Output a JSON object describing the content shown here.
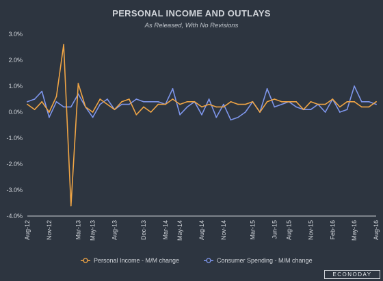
{
  "chart_data": {
    "type": "line",
    "title": "PERSONAL INCOME AND OUTLAYS",
    "subtitle": "As Released, With No Revisions",
    "y_tick_labels": [
      "3.0%",
      "2.0%",
      "1.0%",
      "0.0%",
      "-1.0%",
      "-2.0%",
      "-3.0%",
      "-4.0%"
    ],
    "ylim": [
      -4.0,
      3.0
    ],
    "grid": false,
    "legend_position": "bottom",
    "x": [
      "Aug-12",
      "Sep-12",
      "Oct-12",
      "Nov-12",
      "Dec-12",
      "Jan-13",
      "Feb-13",
      "Mar-13",
      "Apr-13",
      "May-13",
      "Jun-13",
      "Jul-13",
      "Aug-13",
      "Sep-13",
      "Oct-13",
      "Nov-13",
      "Dec-13",
      "Jan-14",
      "Feb-14",
      "Mar-14",
      "Apr-14",
      "May-14",
      "Jun-14",
      "Jul-14",
      "Aug-14",
      "Sep-14",
      "Oct-14",
      "Nov-14",
      "Dec-14",
      "Jan-15",
      "Feb-15",
      "Mar-15",
      "Apr-15",
      "May-15",
      "Jun-15",
      "Jul-15",
      "Aug-15",
      "Sep-15",
      "Oct-15",
      "Nov-15",
      "Dec-15",
      "Jan-16",
      "Feb-16",
      "Mar-16",
      "Apr-16",
      "May-16",
      "Jun-16",
      "Jul-16",
      "Aug-16"
    ],
    "x_tick_labels": [
      "Aug-12",
      "Nov-12",
      "Mar-13",
      "May-13",
      "Aug-13",
      "Dec-13",
      "Mar-14",
      "May-14",
      "Aug-14",
      "Nov-14",
      "Mar-15",
      "Jun-15",
      "Aug-15",
      "Nov-15",
      "Feb-16",
      "May-16",
      "Aug-16"
    ],
    "series": [
      {
        "name": "Personal Income - M/M change",
        "color": "#f0a545",
        "values": [
          0.3,
          0.1,
          0.4,
          0.0,
          0.6,
          2.6,
          -3.6,
          1.1,
          0.2,
          0.0,
          0.5,
          0.3,
          0.1,
          0.4,
          0.5,
          -0.1,
          0.2,
          0.0,
          0.3,
          0.3,
          0.5,
          0.3,
          0.4,
          0.4,
          0.2,
          0.3,
          0.2,
          0.2,
          0.4,
          0.3,
          0.3,
          0.4,
          0.0,
          0.4,
          0.5,
          0.4,
          0.4,
          0.4,
          0.1,
          0.4,
          0.3,
          0.3,
          0.5,
          0.2,
          0.4,
          0.4,
          0.2,
          0.2,
          0.4
        ]
      },
      {
        "name": "Consumer Spending - M/M change",
        "color": "#7e96ec",
        "values": [
          0.4,
          0.5,
          0.8,
          -0.2,
          0.4,
          0.2,
          0.2,
          0.7,
          0.2,
          -0.2,
          0.3,
          0.5,
          0.1,
          0.3,
          0.3,
          0.5,
          0.4,
          0.4,
          0.4,
          0.3,
          0.9,
          -0.1,
          0.2,
          0.4,
          -0.1,
          0.5,
          -0.2,
          0.3,
          -0.3,
          -0.2,
          0.0,
          0.4,
          0.0,
          0.9,
          0.2,
          0.3,
          0.4,
          0.2,
          0.1,
          0.1,
          0.3,
          0.0,
          0.5,
          0.0,
          0.1,
          1.0,
          0.4,
          0.4,
          0.3
        ]
      }
    ]
  },
  "brand_text": "ECONODAY"
}
